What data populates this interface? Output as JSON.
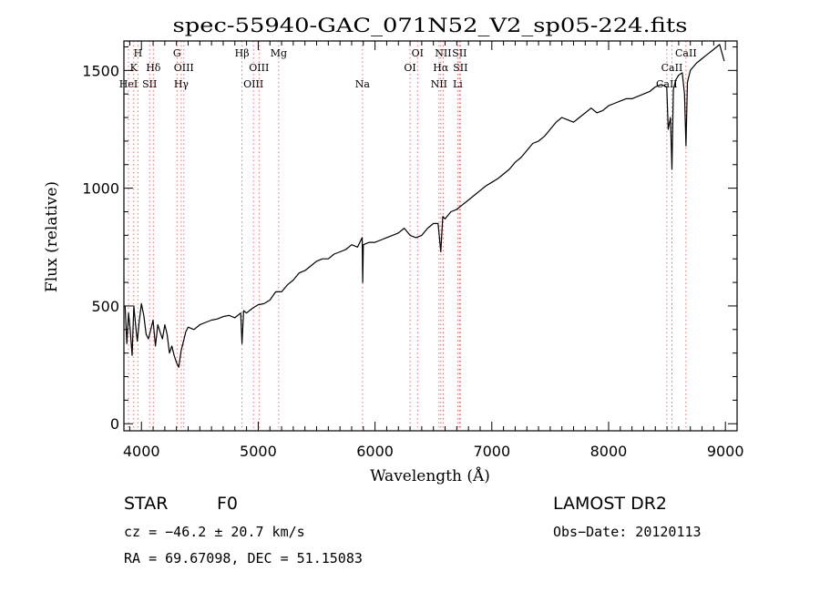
{
  "chart_data": {
    "type": "line",
    "title": "spec-55940-GAC_071N52_V2_sp05-224.fits",
    "xlabel": "Wavelength (Å)",
    "ylabel": "Flux (relative)",
    "xlim": [
      3850,
      9100
    ],
    "ylim": [
      -30,
      1625
    ],
    "xticks": [
      4000,
      5000,
      6000,
      7000,
      8000,
      9000
    ],
    "yticks": [
      0,
      500,
      1000,
      1500
    ],
    "grid": false,
    "series": [
      {
        "values_x": [
          3860,
          3875,
          3890,
          3905,
          3920,
          3935,
          3950,
          3965,
          3980,
          4000,
          4020,
          4040,
          4060,
          4080,
          4100,
          4120,
          4140,
          4160,
          4180,
          4200,
          4220,
          4240,
          4260,
          4280,
          4300,
          4320,
          4340,
          4360,
          4380,
          4400,
          4450,
          4500,
          4550,
          4600,
          4650,
          4700,
          4750,
          4800,
          4850,
          4861,
          4875,
          4900,
          4950,
          5000,
          5050,
          5100,
          5150,
          5200,
          5250,
          5300,
          5350,
          5400,
          5450,
          5500,
          5550,
          5600,
          5650,
          5700,
          5750,
          5800,
          5850,
          5890,
          5895,
          5900,
          5950,
          6000,
          6050,
          6100,
          6150,
          6200,
          6250,
          6300,
          6350,
          6400,
          6450,
          6500,
          6540,
          6563,
          6580,
          6600,
          6650,
          6700,
          6750,
          6800,
          6850,
          6900,
          6950,
          7000,
          7050,
          7100,
          7150,
          7200,
          7250,
          7300,
          7350,
          7400,
          7450,
          7500,
          7550,
          7600,
          7650,
          7700,
          7750,
          7800,
          7850,
          7900,
          7950,
          8000,
          8050,
          8100,
          8150,
          8200,
          8250,
          8300,
          8350,
          8400,
          8450,
          8498,
          8510,
          8530,
          8542,
          8555,
          8575,
          8600,
          8630,
          8650,
          8662,
          8675,
          8700,
          8750,
          8800,
          8850,
          8900,
          8950,
          8990
        ],
        "values_y": [
          500,
          340,
          470,
          390,
          290,
          500,
          420,
          350,
          430,
          510,
          460,
          380,
          360,
          400,
          440,
          330,
          420,
          390,
          360,
          420,
          380,
          300,
          330,
          290,
          260,
          240,
          310,
          350,
          390,
          410,
          400,
          420,
          430,
          440,
          445,
          455,
          460,
          450,
          470,
          340,
          480,
          470,
          490,
          505,
          510,
          525,
          560,
          560,
          590,
          610,
          640,
          650,
          670,
          690,
          700,
          700,
          720,
          730,
          740,
          760,
          750,
          790,
          600,
          760,
          770,
          770,
          780,
          790,
          800,
          810,
          830,
          800,
          790,
          800,
          830,
          850,
          850,
          730,
          880,
          870,
          900,
          910,
          930,
          950,
          970,
          990,
          1010,
          1025,
          1040,
          1060,
          1080,
          1110,
          1130,
          1160,
          1190,
          1200,
          1220,
          1250,
          1280,
          1300,
          1290,
          1280,
          1300,
          1320,
          1340,
          1320,
          1330,
          1350,
          1360,
          1370,
          1380,
          1380,
          1390,
          1400,
          1410,
          1430,
          1440,
          1430,
          1250,
          1300,
          1080,
          1420,
          1460,
          1480,
          1490,
          1400,
          1180,
          1450,
          1500,
          1530,
          1550,
          1570,
          1590,
          1610,
          1540
        ]
      }
    ],
    "line_labels": [
      {
        "label": "H",
        "wave": 3970,
        "row": 1
      },
      {
        "label": "K",
        "wave": 3934,
        "row": 2
      },
      {
        "label": "HeI",
        "wave": 3889,
        "row": 3
      },
      {
        "label": "Hδ",
        "wave": 4102,
        "row": 2
      },
      {
        "label": "SII",
        "wave": 4070,
        "row": 3
      },
      {
        "label": "G",
        "wave": 4305,
        "row": 1
      },
      {
        "label": "OIII",
        "wave": 4363,
        "row": 2
      },
      {
        "label": "Hγ",
        "wave": 4341,
        "row": 3
      },
      {
        "label": "Hβ",
        "wave": 4861,
        "row": 1
      },
      {
        "label": "OIII",
        "wave": 5007,
        "row": 2
      },
      {
        "label": "OIII",
        "wave": 4959,
        "row": 3
      },
      {
        "label": "Mg",
        "wave": 5175,
        "row": 1
      },
      {
        "label": "Na",
        "wave": 5893,
        "row": 3
      },
      {
        "label": "OI",
        "wave": 6364,
        "row": 1
      },
      {
        "label": "OI",
        "wave": 6300,
        "row": 2
      },
      {
        "label": "NII",
        "wave": 6584,
        "row": 1
      },
      {
        "label": "SII",
        "wave": 6724,
        "row": 1
      },
      {
        "label": "Hα",
        "wave": 6563,
        "row": 2
      },
      {
        "label": "SII",
        "wave": 6731,
        "row": 2
      },
      {
        "label": "NII",
        "wave": 6548,
        "row": 3
      },
      {
        "label": "Li",
        "wave": 6708,
        "row": 3
      },
      {
        "label": "CaII",
        "wave": 8662,
        "row": 1
      },
      {
        "label": "CaII",
        "wave": 8542,
        "row": 2
      },
      {
        "label": "CaII",
        "wave": 8498,
        "row": 3
      }
    ],
    "line_color": "#000000",
    "marker_color": "#ff6666"
  },
  "footer": {
    "object_class": "STAR",
    "subclass": "F0",
    "survey": "LAMOST DR2",
    "cz": "cz = −46.2 ± 20.7 km/s",
    "obs_date": "Obs−Date: 20120113",
    "coords": "RA =  69.67098, DEC =  51.15083"
  }
}
